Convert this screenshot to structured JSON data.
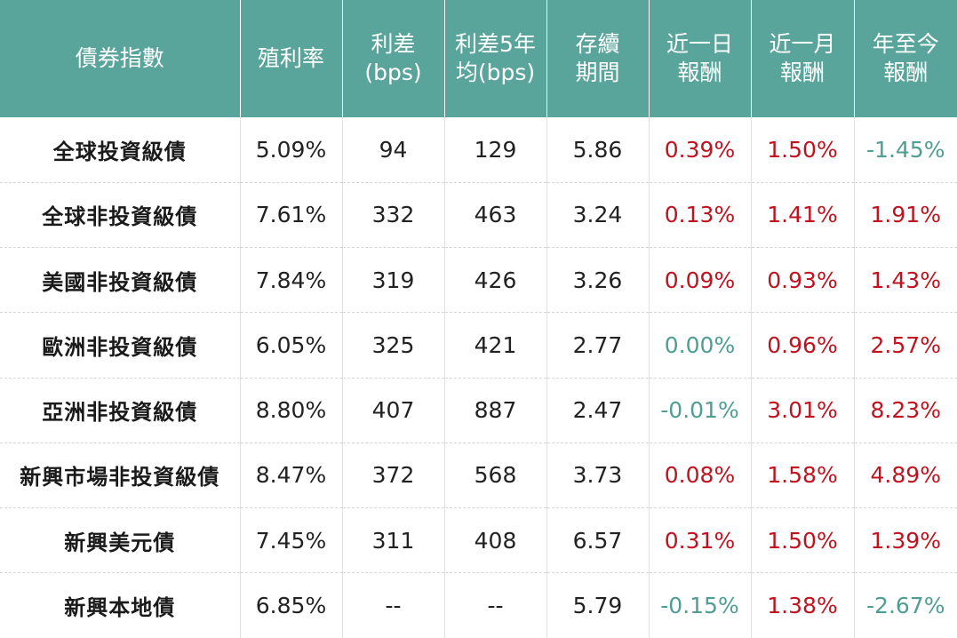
{
  "colors": {
    "header_bg": "#5aa59b",
    "positive": "#c0121f",
    "non_positive": "#4f9e94"
  },
  "headers": [
    [
      "債券指數"
    ],
    [
      "殖利率"
    ],
    [
      "利差",
      "(bps)"
    ],
    [
      "利差5年",
      "均(bps)"
    ],
    [
      "存續",
      "期間"
    ],
    [
      "近一日",
      "報酬"
    ],
    [
      "近一月",
      "報酬"
    ],
    [
      "年至今",
      "報酬"
    ]
  ],
  "rows": [
    {
      "name": "全球投資級債",
      "yield": "5.09%",
      "spread": "94",
      "spread5y": "129",
      "duration": "5.86",
      "r1d": {
        "v": "0.39%",
        "tone": "pos"
      },
      "r1m": {
        "v": "1.50%",
        "tone": "pos"
      },
      "ytd": {
        "v": "-1.45%",
        "tone": "neg"
      }
    },
    {
      "name": "全球非投資級債",
      "yield": "7.61%",
      "spread": "332",
      "spread5y": "463",
      "duration": "3.24",
      "r1d": {
        "v": "0.13%",
        "tone": "pos"
      },
      "r1m": {
        "v": "1.41%",
        "tone": "pos"
      },
      "ytd": {
        "v": "1.91%",
        "tone": "pos"
      }
    },
    {
      "name": "美國非投資級債",
      "yield": "7.84%",
      "spread": "319",
      "spread5y": "426",
      "duration": "3.26",
      "r1d": {
        "v": "0.09%",
        "tone": "pos"
      },
      "r1m": {
        "v": "0.93%",
        "tone": "pos"
      },
      "ytd": {
        "v": "1.43%",
        "tone": "pos"
      }
    },
    {
      "name": "歐洲非投資級債",
      "yield": "6.05%",
      "spread": "325",
      "spread5y": "421",
      "duration": "2.77",
      "r1d": {
        "v": "0.00%",
        "tone": "neg"
      },
      "r1m": {
        "v": "0.96%",
        "tone": "pos"
      },
      "ytd": {
        "v": "2.57%",
        "tone": "pos"
      }
    },
    {
      "name": "亞洲非投資級債",
      "yield": "8.80%",
      "spread": "407",
      "spread5y": "887",
      "duration": "2.47",
      "r1d": {
        "v": "-0.01%",
        "tone": "neg"
      },
      "r1m": {
        "v": "3.01%",
        "tone": "pos"
      },
      "ytd": {
        "v": "8.23%",
        "tone": "pos"
      }
    },
    {
      "name": "新興市場非投資級債",
      "yield": "8.47%",
      "spread": "372",
      "spread5y": "568",
      "duration": "3.73",
      "r1d": {
        "v": "0.08%",
        "tone": "pos"
      },
      "r1m": {
        "v": "1.58%",
        "tone": "pos"
      },
      "ytd": {
        "v": "4.89%",
        "tone": "pos"
      }
    },
    {
      "name": "新興美元債",
      "yield": "7.45%",
      "spread": "311",
      "spread5y": "408",
      "duration": "6.57",
      "r1d": {
        "v": "0.31%",
        "tone": "pos"
      },
      "r1m": {
        "v": "1.50%",
        "tone": "pos"
      },
      "ytd": {
        "v": "1.39%",
        "tone": "pos"
      }
    },
    {
      "name": "新興本地債",
      "yield": "6.85%",
      "spread": "--",
      "spread5y": "--",
      "duration": "5.79",
      "r1d": {
        "v": "-0.15%",
        "tone": "neg"
      },
      "r1m": {
        "v": "1.38%",
        "tone": "pos"
      },
      "ytd": {
        "v": "-2.67%",
        "tone": "neg"
      }
    }
  ]
}
